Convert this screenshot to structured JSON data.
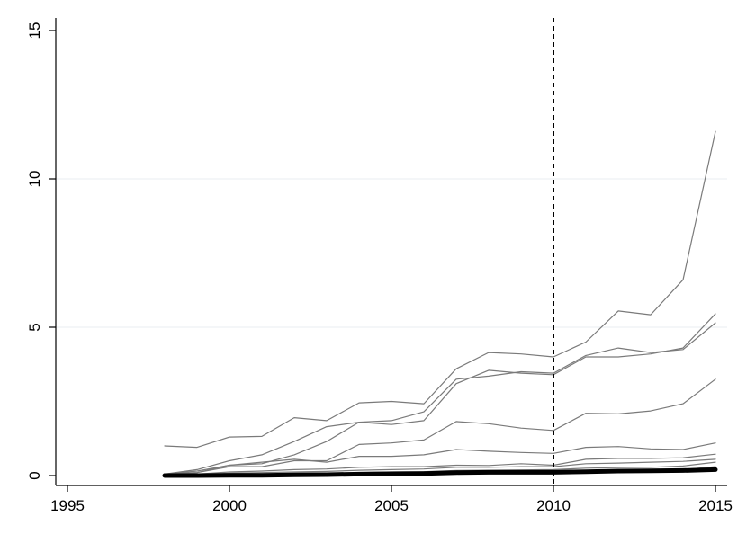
{
  "chart_data": {
    "type": "line",
    "title": "",
    "xlabel": "",
    "ylabel": "",
    "xlim": [
      1995,
      2015
    ],
    "ylim": [
      0,
      15
    ],
    "x_ticks": [
      {
        "value": 1995,
        "label": "1995"
      },
      {
        "value": 2000,
        "label": "2000"
      },
      {
        "value": 2005,
        "label": "2005"
      },
      {
        "value": 2010,
        "label": "2010"
      },
      {
        "value": 2015,
        "label": "2015"
      }
    ],
    "y_ticks": [
      {
        "value": 0,
        "label": "0"
      },
      {
        "value": 5,
        "label": "5"
      },
      {
        "value": 10,
        "label": "10"
      },
      {
        "value": 15,
        "label": "15"
      }
    ],
    "gridlines_y": [
      5,
      10
    ],
    "reference_line": {
      "x": 2010,
      "style": "dashed"
    },
    "x": [
      1998,
      1999,
      2000,
      2001,
      2002,
      2003,
      2004,
      2005,
      2006,
      2007,
      2008,
      2009,
      2010,
      2011,
      2012,
      2013,
      2014,
      2015
    ],
    "series": [
      {
        "values": [
          1.0,
          0.95,
          1.3,
          1.32,
          1.95,
          1.85,
          2.45,
          2.5,
          2.42,
          3.6,
          4.15,
          4.1,
          4.0,
          4.5,
          5.55,
          5.42,
          6.6,
          11.6
        ],
        "color": "#7a7a7a",
        "width": 1.2
      },
      {
        "values": [
          0.05,
          0.2,
          0.5,
          0.7,
          1.15,
          1.65,
          1.8,
          1.72,
          1.85,
          3.1,
          3.55,
          3.45,
          3.4,
          4.0,
          4.0,
          4.1,
          4.3,
          5.45
        ],
        "color": "#7a7a7a",
        "width": 1.2
      },
      {
        "values": [
          0.05,
          0.15,
          0.35,
          0.4,
          0.7,
          1.15,
          1.8,
          1.85,
          2.15,
          3.25,
          3.35,
          3.5,
          3.45,
          4.05,
          4.3,
          4.15,
          4.25,
          5.15
        ],
        "color": "#7a7a7a",
        "width": 1.2
      },
      {
        "values": [
          0.05,
          0.1,
          0.3,
          0.3,
          0.5,
          0.5,
          1.05,
          1.1,
          1.2,
          1.82,
          1.75,
          1.6,
          1.52,
          2.1,
          2.08,
          2.18,
          2.42,
          3.25
        ],
        "color": "#7a7a7a",
        "width": 1.2
      },
      {
        "values": [
          0.05,
          0.1,
          0.35,
          0.45,
          0.55,
          0.45,
          0.65,
          0.65,
          0.7,
          0.88,
          0.82,
          0.78,
          0.75,
          0.95,
          0.98,
          0.9,
          0.88,
          1.1
        ],
        "color": "#7a7a7a",
        "width": 1.2
      },
      {
        "values": [
          0.03,
          0.05,
          0.12,
          0.15,
          0.2,
          0.22,
          0.28,
          0.3,
          0.3,
          0.35,
          0.34,
          0.4,
          0.35,
          0.55,
          0.58,
          0.58,
          0.6,
          0.72
        ],
        "color": "#7a7a7a",
        "width": 1.2
      },
      {
        "values": [
          0.02,
          0.03,
          0.08,
          0.1,
          0.12,
          0.14,
          0.18,
          0.2,
          0.22,
          0.28,
          0.28,
          0.3,
          0.3,
          0.4,
          0.42,
          0.45,
          0.48,
          0.55
        ],
        "color": "#7a7a7a",
        "width": 1.2
      },
      {
        "values": [
          0.01,
          0.02,
          0.04,
          0.05,
          0.07,
          0.08,
          0.1,
          0.12,
          0.13,
          0.17,
          0.18,
          0.19,
          0.2,
          0.25,
          0.27,
          0.28,
          0.32,
          0.45
        ],
        "color": "#7a7a7a",
        "width": 1.2
      },
      {
        "values": [
          0.0,
          0.0,
          0.01,
          0.02,
          0.03,
          0.04,
          0.06,
          0.07,
          0.08,
          0.11,
          0.12,
          0.12,
          0.12,
          0.14,
          0.16,
          0.17,
          0.2,
          0.3
        ],
        "color": "#7a7a7a",
        "width": 1.2
      },
      {
        "values": [
          0.0,
          0.0,
          0.01,
          0.01,
          0.02,
          0.03,
          0.05,
          0.06,
          0.07,
          0.1,
          0.11,
          0.11,
          0.11,
          0.13,
          0.15,
          0.16,
          0.17,
          0.2
        ],
        "color": "#000000",
        "width": 5
      }
    ]
  }
}
